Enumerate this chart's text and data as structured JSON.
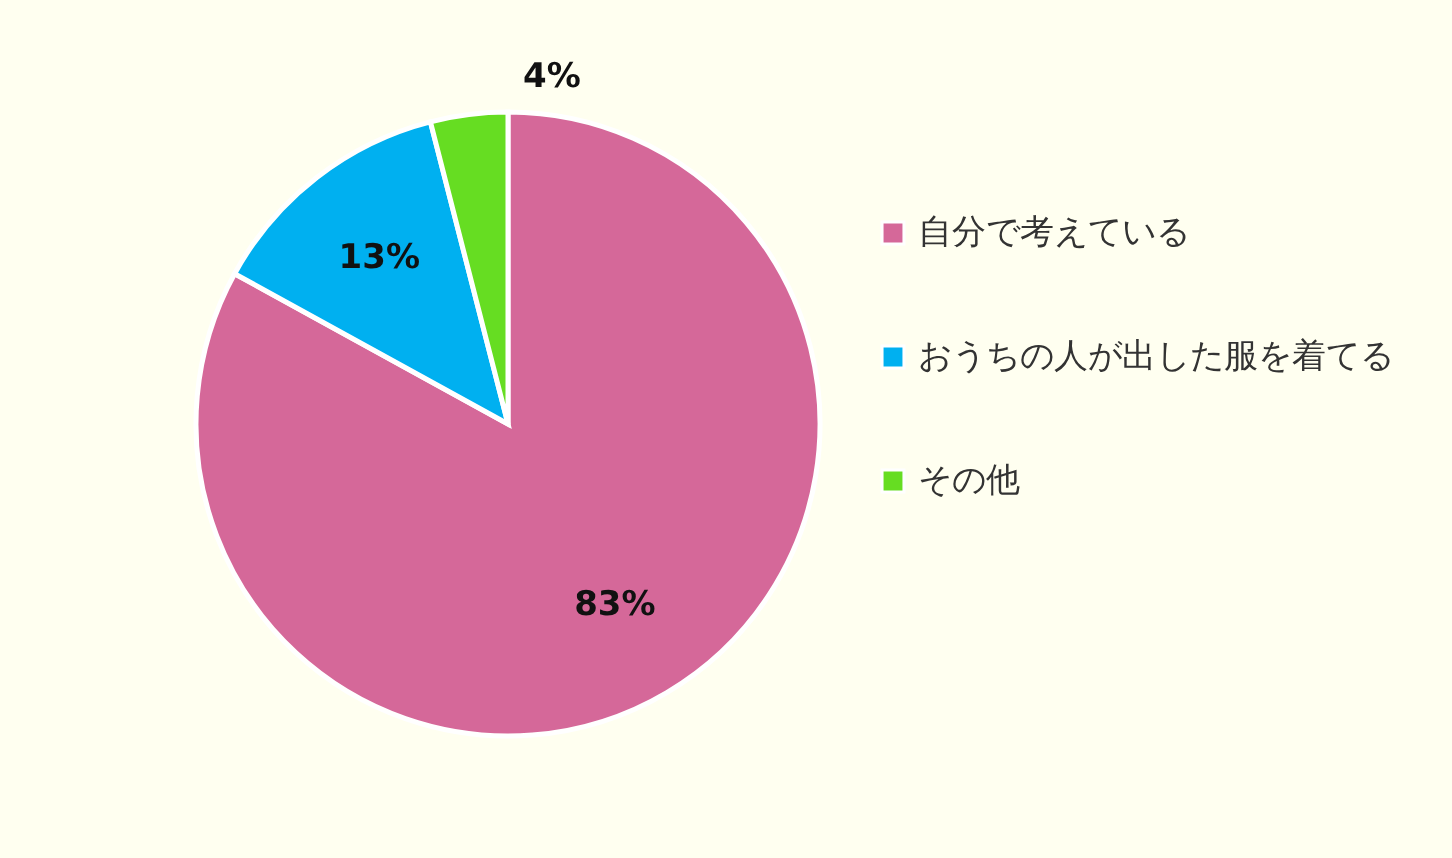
{
  "chart_data": {
    "type": "pie",
    "categories": [
      "自分で考えている",
      "おうちの人が出した服を着てる",
      "その他"
    ],
    "values": [
      83,
      13,
      4
    ],
    "colors": [
      "#d56899",
      "#00b0f0",
      "#66dd22"
    ],
    "value_labels": [
      "83%",
      "13%",
      "4%"
    ],
    "legend": "right"
  }
}
